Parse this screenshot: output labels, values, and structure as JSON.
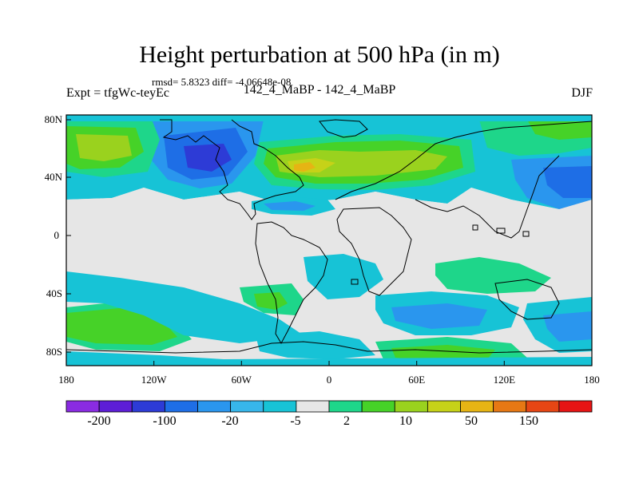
{
  "header": {
    "title": "Height perturbation at 500 hPa (in m)",
    "stats": "rmsd= 5.8323 diff= -4.06648e-08",
    "left_label": "Expt = tfgWc-teyEc",
    "center_label": "142_4_MaBP - 142_4_MaBP",
    "right_label": "DJF"
  },
  "map": {
    "lat_ticks": [
      "80N",
      "40N",
      "0",
      "40S",
      "80S"
    ],
    "lon_ticks": [
      "180",
      "120W",
      "60W",
      "0",
      "60E",
      "120E",
      "180"
    ]
  },
  "colorbar": {
    "labels": [
      "-200",
      "-100",
      "-20",
      "-5",
      "2",
      "10",
      "50",
      "150"
    ],
    "colors": [
      "#8a2be2",
      "#5d1ed6",
      "#2d3bd6",
      "#1e6ee6",
      "#2a96ee",
      "#37b6ea",
      "#17c3d6",
      "#e6e6e6",
      "#1ed68a",
      "#46d228",
      "#9ad21e",
      "#c6d218",
      "#e6b414",
      "#e67814",
      "#e64614",
      "#e61414"
    ]
  },
  "field_colors": {
    "neutral": "#e6e6e6",
    "light_blue": "#17c3d6",
    "blue": "#2a96ee",
    "deep_blue": "#1e6ee6",
    "navy": "#2d3bd6",
    "green": "#1ed68a",
    "lime": "#46d228",
    "yellow_green": "#9ad21e",
    "yellow": "#c6d218",
    "orange": "#e6b414"
  }
}
